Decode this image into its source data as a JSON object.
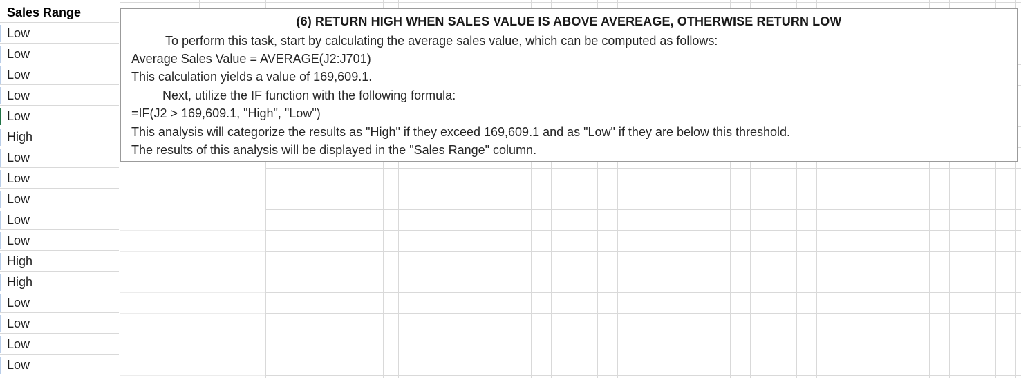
{
  "column_a": {
    "header": "Sales Range",
    "values": [
      "Low",
      "Low",
      "Low",
      "Low",
      "Low",
      "High",
      "Low",
      "Low",
      "Low",
      "Low",
      "Low",
      "High",
      "High",
      "Low",
      "Low",
      "Low",
      "Low"
    ]
  },
  "textbox": {
    "title": "(6) RETURN HIGH WHEN SALES VALUE IS ABOVE AVEREAGE, OTHERWISE RETURN LOW",
    "lines": [
      "To perform this task, start by calculating the average sales value, which can be computed as follows:",
      "Average Sales Value = AVERAGE(J2:J701)",
      "This calculation yields a value of 169,609.1.",
      "Next, utilize the IF function with the following formula:",
      "=IF(J2 > 169,609.1, \"High\", \"Low\")",
      "This analysis will categorize the results as \"High\" if they exceed 169,609.1 and as \"Low\" if they are below this threshold.",
      "The results of this analysis will be displayed in the \"Sales Range\" column."
    ]
  },
  "colors": {
    "gridline": "#d9d9d9",
    "active_cell_marker": "#217346",
    "selection_tick": "#b9cde8"
  }
}
